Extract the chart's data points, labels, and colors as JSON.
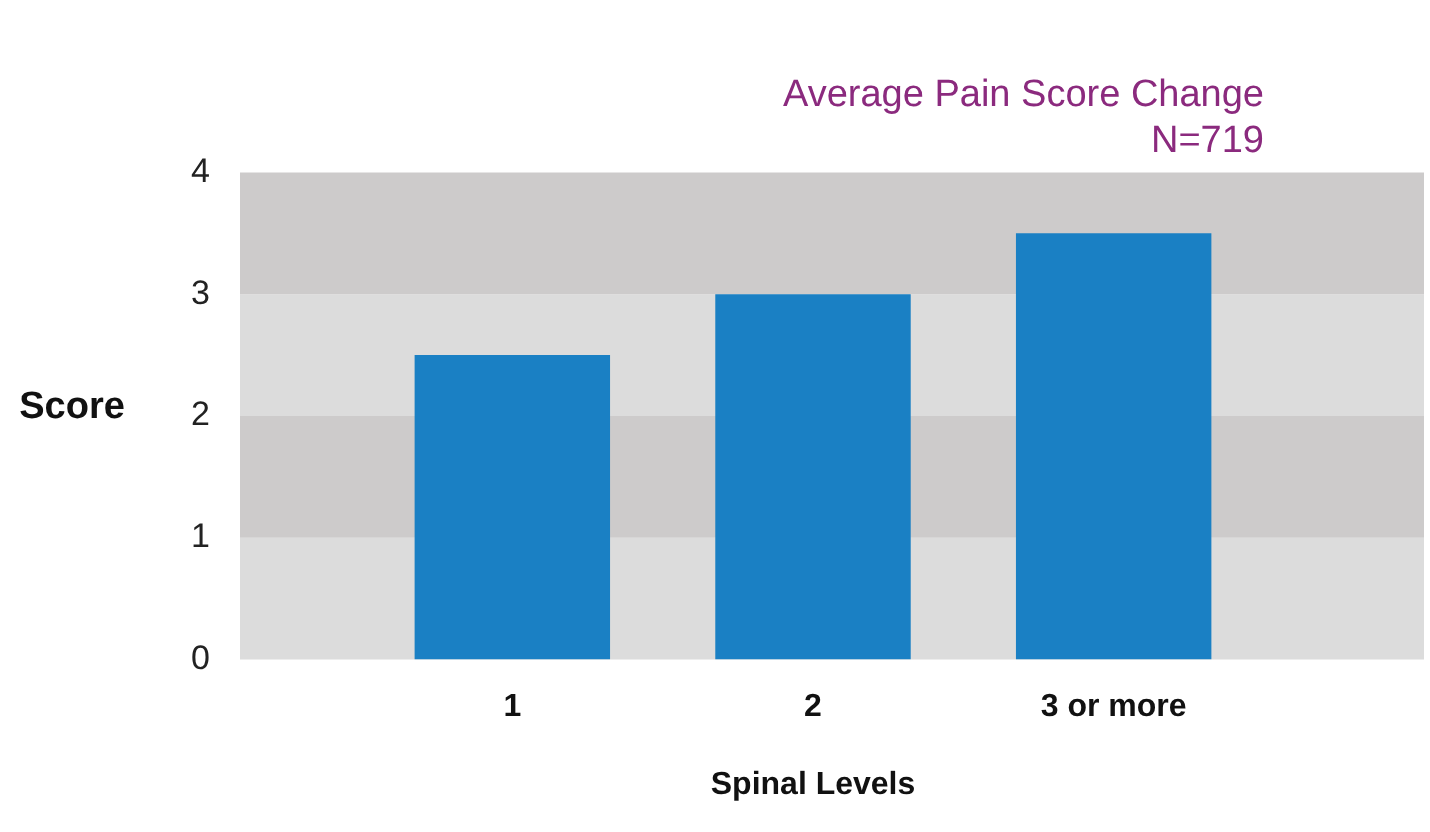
{
  "chart_data": {
    "type": "bar",
    "title": "Average Pain Score Change",
    "subtitle": "N=719",
    "xlabel": "Spinal Levels",
    "ylabel": "Score",
    "categories": [
      "1",
      "2",
      "3 or more"
    ],
    "values": [
      2.5,
      3.0,
      3.5
    ],
    "color": "#1a80c4",
    "ylim": [
      0,
      4
    ],
    "yticks": [
      0,
      1,
      2,
      3,
      4
    ],
    "grid": false,
    "legend": false,
    "bands": [
      {
        "axis": "y",
        "from": 0,
        "to": 1,
        "color": "#dcdcdc"
      },
      {
        "axis": "y",
        "from": 1,
        "to": 2,
        "color": "#cdcbcb"
      },
      {
        "axis": "y",
        "from": 2,
        "to": 3,
        "color": "#dcdcdc"
      },
      {
        "axis": "y",
        "from": 3,
        "to": 4,
        "color": "#cdcbcb"
      }
    ]
  }
}
